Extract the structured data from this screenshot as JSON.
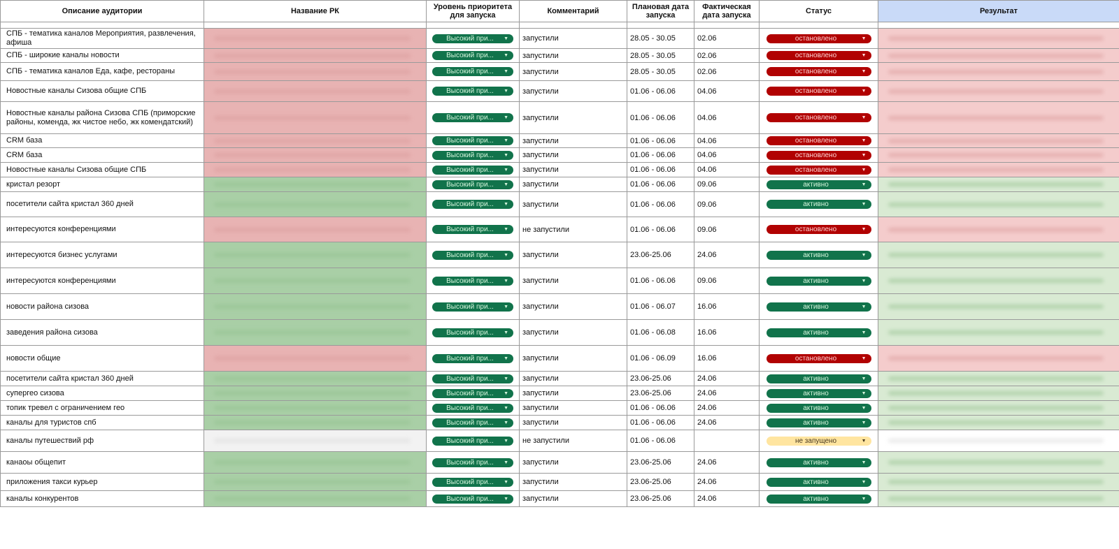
{
  "colors": {
    "priority_chip": "#11734b",
    "status_stopped": "#b10202",
    "status_active": "#11734b",
    "status_not_started": "#ffe5a0",
    "row_red": "#f4cccc",
    "row_green": "#d9ead3",
    "result_header": "#c9daf8"
  },
  "icons": {
    "dropdown": "caret-down-icon"
  },
  "header": {
    "audience": "Описание аудитории",
    "campaign": "Название РК",
    "priority": "Уровень приоритета для запуска",
    "comment": "Комментарий",
    "planned": "Плановая дата запуска",
    "actual": "Фактическая дата запуска",
    "status": "Статус",
    "result": "Результат"
  },
  "rows": [
    {
      "desc": "СПБ - тематика каналов Мероприятия, развлечения, афиша",
      "prio": "Высокий при...",
      "comment": "запустили",
      "planned": "28.05 - 30.05",
      "actual": "02.06",
      "status": "остановлено",
      "color": "red"
    },
    {
      "desc": "СПБ - широкие каналы новости",
      "prio": "Высокий при...",
      "comment": "запустили",
      "planned": "28.05 - 30.05",
      "actual": "02.06",
      "status": "остановлено",
      "color": "red"
    },
    {
      "desc": "СПБ - тематика каналов Еда, кафе, рестораны",
      "prio": "Высокий при...",
      "comment": "запустили",
      "planned": "28.05 - 30.05",
      "actual": "02.06",
      "status": "остановлено",
      "color": "red"
    },
    {
      "desc": "Новостные каналы Сизова общие СПБ",
      "prio": "Высокий при...",
      "comment": "запустили",
      "planned": "01.06 - 06.06",
      "actual": "04.06",
      "status": "остановлено",
      "color": "red"
    },
    {
      "desc": "Новостные каналы района Сизова СПБ (приморские районы, коменда, жк чистое небо, жк комендатский)",
      "prio": "Высокий при...",
      "comment": "запустили",
      "planned": "01.06 - 06.06",
      "actual": "04.06",
      "status": "остановлено",
      "color": "red"
    },
    {
      "desc": "CRM база",
      "prio": "Высокий при...",
      "comment": "запустили",
      "planned": "01.06 - 06.06",
      "actual": "04.06",
      "status": "остановлено",
      "color": "red"
    },
    {
      "desc": "CRM база",
      "prio": "Высокий при...",
      "comment": "запустили",
      "planned": "01.06 - 06.06",
      "actual": "04.06",
      "status": "остановлено",
      "color": "red"
    },
    {
      "desc": "Новостные каналы Сизова общие СПБ",
      "prio": "Высокий при...",
      "comment": "запустили",
      "planned": "01.06 - 06.06",
      "actual": "04.06",
      "status": "остановлено",
      "color": "red"
    },
    {
      "desc": "кристал резорт",
      "prio": "Высокий при...",
      "comment": "запустили",
      "planned": "01.06 - 06.06",
      "actual": "09.06",
      "status": "активно",
      "color": "green"
    },
    {
      "desc": "посетители сайта кристал 360 дней",
      "prio": "Высокий при...",
      "comment": "запустили",
      "planned": "01.06 - 06.06",
      "actual": "09.06",
      "status": "активно",
      "color": "green"
    },
    {
      "desc": "интересуются конференциями",
      "prio": "Высокий при...",
      "comment": "не запустили",
      "planned": "01.06 - 06.06",
      "actual": "09.06",
      "status": "остановлено",
      "color": "red"
    },
    {
      "desc": "интересуются бизнес услугами",
      "prio": "Высокий при...",
      "comment": "запустили",
      "planned": "23.06-25.06",
      "actual": "24.06",
      "status": "активно",
      "color": "green"
    },
    {
      "desc": "интересуются конференциями",
      "prio": "Высокий при...",
      "comment": "запустили",
      "planned": "01.06 - 06.06",
      "actual": "09.06",
      "status": "активно",
      "color": "green"
    },
    {
      "desc": "новости района сизова",
      "prio": "Высокий при...",
      "comment": "запустили",
      "planned": "01.06 - 06.07",
      "actual": "16.06",
      "status": "активно",
      "color": "green"
    },
    {
      "desc": "заведения района сизова",
      "prio": "Высокий при...",
      "comment": "запустили",
      "planned": "01.06 - 06.08",
      "actual": "16.06",
      "status": "активно",
      "color": "green"
    },
    {
      "desc": "новости общие",
      "prio": "Высокий при...",
      "comment": "запустили",
      "planned": "01.06 - 06.09",
      "actual": "16.06",
      "status": "остановлено",
      "color": "red"
    },
    {
      "desc": "посетители сайта кристал 360 дней",
      "prio": "Высокий при...",
      "comment": "запустили",
      "planned": "23.06-25.06",
      "actual": "24.06",
      "status": "активно",
      "color": "green"
    },
    {
      "desc": "супергео сизова",
      "prio": "Высокий при...",
      "comment": "запустили",
      "planned": "23.06-25.06",
      "actual": "24.06",
      "status": "активно",
      "color": "green"
    },
    {
      "desc": " топик тревел с ограничением гео",
      "prio": "Высокий при...",
      "comment": "запустили",
      "planned": "01.06 - 06.06",
      "actual": "24.06",
      "status": "активно",
      "color": "green"
    },
    {
      "desc": "каналы для туристов спб",
      "prio": "Высокий при...",
      "comment": "запустили",
      "planned": "01.06 - 06.06",
      "actual": "24.06",
      "status": "активно",
      "color": "green"
    },
    {
      "desc": "каналы путешествий рф",
      "prio": "Высокий при...",
      "comment": "не запустили",
      "planned": "01.06 - 06.06",
      "actual": "",
      "status": "не запущено",
      "color": "white"
    },
    {
      "desc": "канаоы общепит",
      "prio": "Высокий при...",
      "comment": "запустили",
      "planned": "23.06-25.06",
      "actual": "24.06",
      "status": "активно",
      "color": "green"
    },
    {
      "desc": "приложения такси курьер",
      "prio": "Высокий при...",
      "comment": "запустили",
      "planned": "23.06-25.06",
      "actual": "24.06",
      "status": "активно",
      "color": "green"
    },
    {
      "desc": "каналы конкурентов",
      "prio": "Высокий при...",
      "comment": "запустили",
      "planned": "23.06-25.06",
      "actual": "24.06",
      "status": "активно",
      "color": "green"
    }
  ]
}
